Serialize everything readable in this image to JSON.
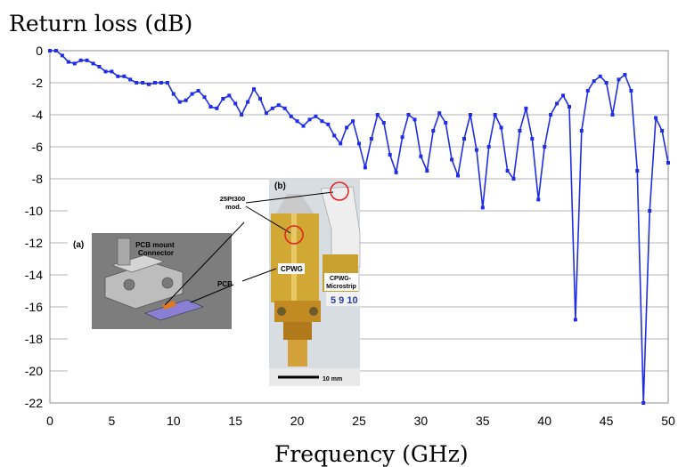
{
  "chart_data": {
    "type": "line",
    "title": "",
    "ylabel": "Return loss  (dB)",
    "xlabel": "Frequency  (GHz)",
    "xlim": [
      0,
      50
    ],
    "ylim": [
      -22,
      0
    ],
    "x_ticks": [
      0,
      5,
      10,
      15,
      20,
      25,
      30,
      35,
      40,
      45,
      50
    ],
    "y_ticks": [
      0,
      -2,
      -4,
      -6,
      -8,
      -10,
      -12,
      -14,
      -16,
      -18,
      -20,
      -22
    ],
    "grid": "horizontal",
    "legend": "none",
    "series_color": "#1f2ee6",
    "series": [
      {
        "x": [
          0.0,
          0.5,
          1.0,
          1.5,
          2.0,
          2.5,
          3.0,
          3.5,
          4.0,
          4.5,
          5.0,
          5.5,
          6.0,
          6.5,
          7.0,
          7.5,
          8.0,
          8.5,
          9.0,
          9.5,
          10.0,
          10.5,
          11.0,
          11.5,
          12.0,
          12.5,
          13.0,
          13.5,
          14.0,
          14.5,
          15.0,
          15.5,
          16.0,
          16.5,
          17.0,
          17.5,
          18.0,
          18.5,
          19.0,
          19.5,
          20.0,
          20.5,
          21.0,
          21.5,
          22.0,
          22.5,
          23.0,
          23.5,
          24.0,
          24.5,
          25.0,
          25.5,
          26.0,
          26.5,
          27.0,
          27.5,
          28.0,
          28.5,
          29.0,
          29.5,
          30.0,
          30.5,
          31.0,
          31.5,
          32.0,
          32.5,
          33.0,
          33.5,
          34.0,
          34.5,
          35.0,
          35.5,
          36.0,
          36.5,
          37.0,
          37.5,
          38.0,
          38.5,
          39.0,
          39.5,
          40.0,
          40.5,
          41.0,
          41.5,
          42.0,
          42.5,
          43.0,
          43.5,
          44.0,
          44.5,
          45.0,
          45.5,
          46.0,
          46.5,
          47.0,
          47.5,
          48.0,
          48.5,
          49.0,
          49.5,
          50.0
        ],
        "y": [
          0.0,
          0.0,
          -0.3,
          -0.7,
          -0.8,
          -0.6,
          -0.6,
          -0.8,
          -1.0,
          -1.3,
          -1.3,
          -1.6,
          -1.6,
          -1.8,
          -2.0,
          -2.0,
          -2.1,
          -2.0,
          -2.0,
          -2.0,
          -2.7,
          -3.2,
          -3.1,
          -2.7,
          -2.5,
          -2.9,
          -3.5,
          -3.6,
          -3.0,
          -2.8,
          -3.3,
          -4.0,
          -3.2,
          -2.4,
          -3.0,
          -3.9,
          -3.6,
          -3.4,
          -3.6,
          -4.1,
          -4.4,
          -4.7,
          -4.3,
          -4.1,
          -4.4,
          -4.6,
          -5.3,
          -5.8,
          -4.8,
          -4.4,
          -5.8,
          -7.3,
          -5.5,
          -4.0,
          -4.5,
          -6.5,
          -7.6,
          -5.4,
          -4.0,
          -4.3,
          -6.6,
          -7.5,
          -5.0,
          -3.9,
          -4.5,
          -6.8,
          -7.8,
          -5.5,
          -4.0,
          -6.2,
          -9.8,
          -6.0,
          -4.0,
          -4.8,
          -7.5,
          -8.0,
          -5.0,
          -3.6,
          -5.5,
          -9.3,
          -6.0,
          -4.0,
          -3.3,
          -2.8,
          -3.5,
          -16.8,
          -5.0,
          -2.5,
          -1.9,
          -1.6,
          -2.0,
          -4.0,
          -1.8,
          -1.5,
          -2.5,
          -7.5,
          -22.0,
          -10.0,
          -4.2,
          -5.0,
          -7.0
        ]
      }
    ]
  },
  "inset": {
    "label_a": "(a)",
    "label_b": "(b)",
    "connector_label": "PCB mount\nConnector",
    "pcb_label": "PCB",
    "probe_label": "25Pt300\nmod.",
    "cpwg_label": "CPWG",
    "cpwg_micro_label": "CPWG-\nMicrostrip",
    "ruler_digits": "5 9 10",
    "scale_label": "10 mm"
  }
}
